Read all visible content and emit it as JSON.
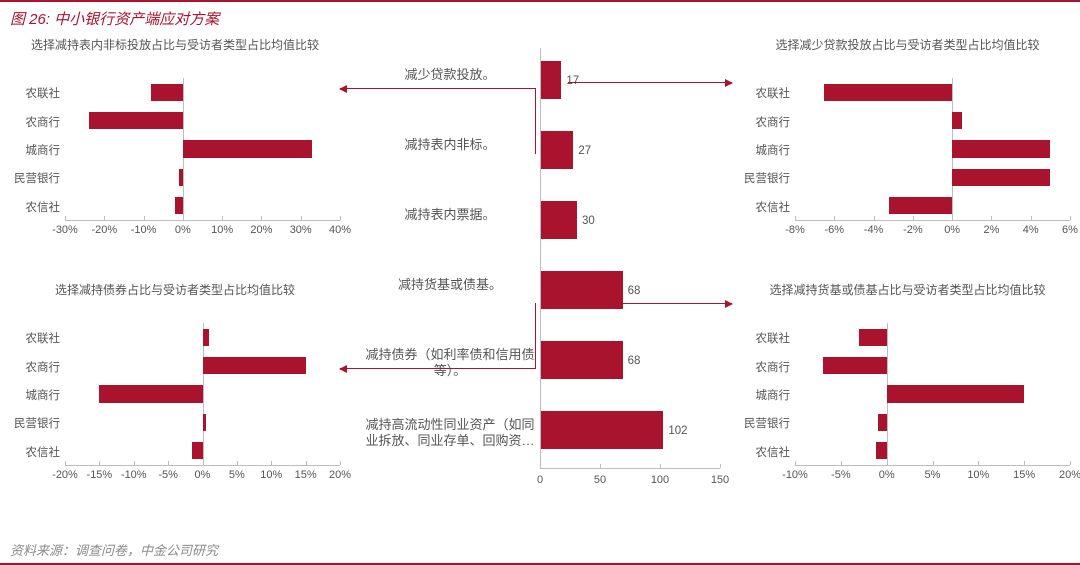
{
  "figure_title": "图 26: 中小银行资产端应对方案",
  "source": "资料来源：调查问卷，中金公司研究",
  "colors": {
    "brand": "#a9132d",
    "axis": "#bdbdbd",
    "text": "#555555",
    "bg": "#ffffff"
  },
  "typography": {
    "title_fontsize": 15,
    "chart_title_fontsize": 12,
    "tick_fontsize": 11,
    "source_fontsize": 13
  },
  "center_chart": {
    "type": "bar-horizontal",
    "title": "",
    "categories": [
      "减少贷款投放。",
      "减持表内非标。",
      "减持表内票据。",
      "减持货基或债基。",
      "减持债券（如利率债和信用债等）。",
      "减持高流动性同业资产（如同业拆放、同业存单、回购资…"
    ],
    "values": [
      17,
      27,
      30,
      68,
      68,
      102
    ],
    "bar_color": "#a9132d",
    "xlim": [
      0,
      150
    ],
    "xticks": [
      0,
      50,
      100,
      150
    ],
    "show_value_labels": true,
    "axis_at_zero": true
  },
  "side_charts": {
    "top_left": {
      "title": "选择减持表内非标投放占比与受访者类型占比均值比较",
      "type": "bar-horizontal",
      "categories": [
        "农联社",
        "农商行",
        "城商行",
        "民营银行",
        "农信社"
      ],
      "values": [
        -8,
        -24,
        33,
        -1,
        -2
      ],
      "xlim": [
        -30,
        40
      ],
      "xticks": [
        -30,
        -20,
        -10,
        0,
        10,
        20,
        30,
        40
      ],
      "bar_color": "#a9132d",
      "tick_suffix": "%"
    },
    "top_right": {
      "title": "选择减少贷款投放占比与受访者类型占比均值比较",
      "type": "bar-horizontal",
      "categories": [
        "农联社",
        "农商行",
        "城商行",
        "民营银行",
        "农信社"
      ],
      "values": [
        -6.5,
        0.5,
        5,
        5,
        -3.2
      ],
      "xlim": [
        -8,
        6
      ],
      "xticks": [
        -8,
        -6,
        -4,
        -2,
        0,
        2,
        4,
        6
      ],
      "bar_color": "#a9132d",
      "tick_suffix": "%"
    },
    "bottom_left": {
      "title": "选择减持债券占比与受访者类型占比均值比较",
      "type": "bar-horizontal",
      "categories": [
        "农联社",
        "农商行",
        "城商行",
        "民营银行",
        "农信社"
      ],
      "values": [
        1,
        15,
        -15,
        0.5,
        -1.5
      ],
      "xlim": [
        -20,
        20
      ],
      "xticks": [
        -20,
        -15,
        -10,
        -5,
        0,
        5,
        10,
        15,
        20
      ],
      "bar_color": "#a9132d",
      "tick_suffix": "%"
    },
    "bottom_right": {
      "title": "选择减持货基或债基占比与受访者类型占比均值比较",
      "type": "bar-horizontal",
      "categories": [
        "农联社",
        "农商行",
        "城商行",
        "民营银行",
        "农信社"
      ],
      "values": [
        -3,
        -7,
        15,
        -1,
        -1.2
      ],
      "xlim": [
        -10,
        20
      ],
      "xticks": [
        -10,
        -5,
        0,
        5,
        10,
        15,
        20
      ],
      "bar_color": "#a9132d",
      "tick_suffix": "%"
    }
  }
}
